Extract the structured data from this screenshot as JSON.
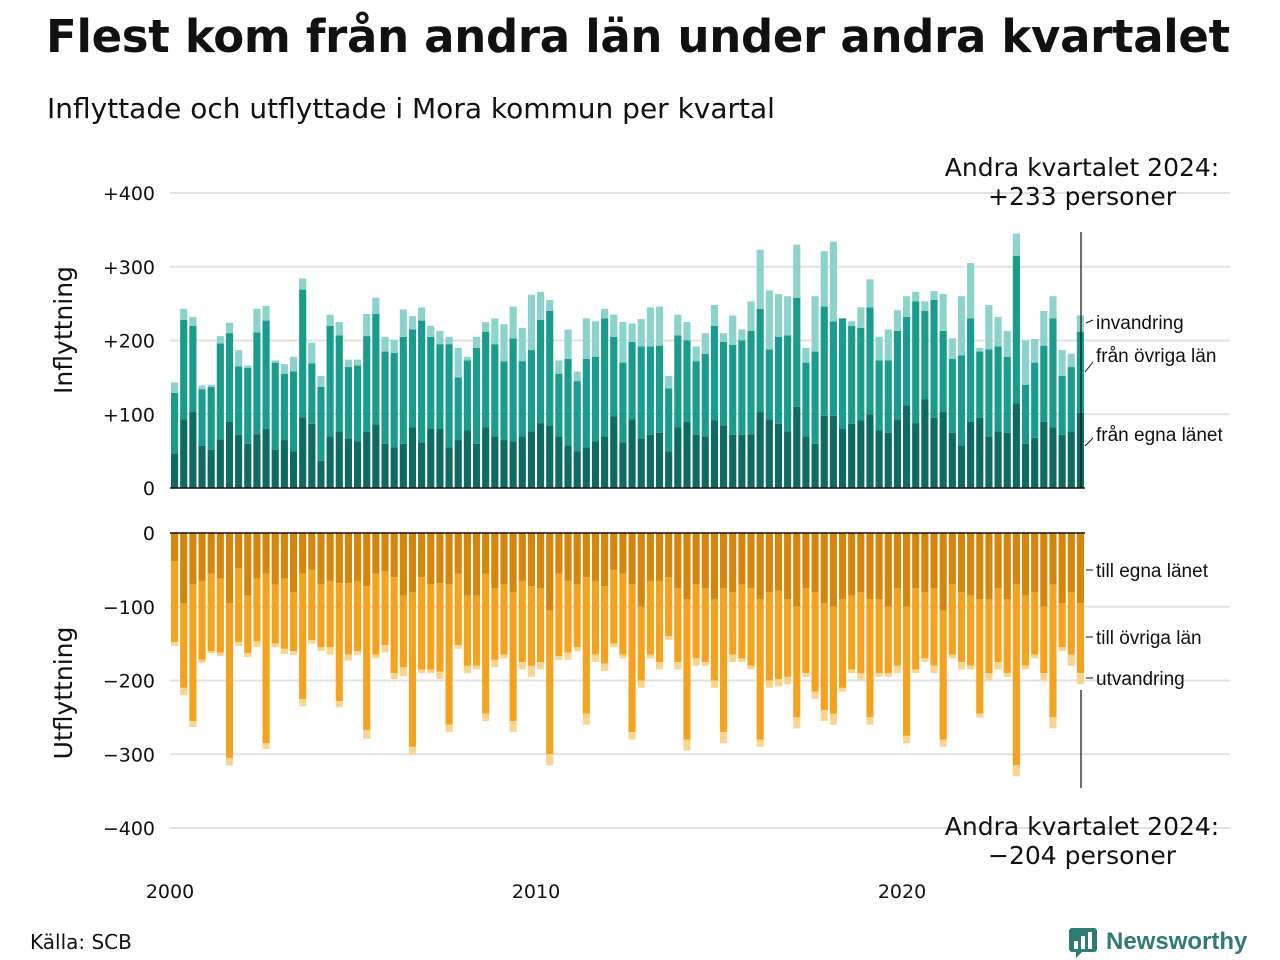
{
  "title": "Flest kom från andra län under andra kvartalet",
  "subtitle": "Inflyttade och utflyttade i Mora kommun per kvartal",
  "source": "Källa: SCB",
  "logo_text": "Newsworthy",
  "colors": {
    "in_own": "#0e6b60",
    "in_other": "#1a9c8c",
    "in_immigration": "#8bd3cb",
    "out_own": "#d4860d",
    "out_other": "#f5a21f",
    "out_emigration": "#fbd48f",
    "grid": "#e2e2e2",
    "axis": "#111111",
    "logo": "#2e7d74"
  },
  "chart_data": [
    {
      "type": "bar",
      "stacked": true,
      "ylabel": "Inflyttning",
      "ylim": [
        0,
        400
      ],
      "yticks": [
        0,
        100,
        200,
        300,
        400
      ],
      "ytick_labels": [
        "0",
        "+100",
        "+200",
        "+300",
        "+400"
      ],
      "x_start": "2000 Q1",
      "x_end": "2024 Q2",
      "xticks": [
        "2000",
        "2010",
        "2020"
      ],
      "annotation": [
        "Andra kvartalet 2024:",
        "+233 personer"
      ],
      "series": [
        {
          "name": "från egna länet",
          "values": [
            47,
            93,
            103,
            57,
            52,
            66,
            90,
            72,
            60,
            73,
            80,
            52,
            65,
            50,
            96,
            87,
            37,
            70,
            77,
            67,
            63,
            76,
            86,
            60,
            55,
            60,
            82,
            62,
            80,
            80,
            55,
            65,
            78,
            60,
            82,
            70,
            65,
            63,
            70,
            77,
            88,
            85,
            70,
            58,
            50,
            55,
            63,
            70,
            97,
            62,
            93,
            67,
            72,
            75,
            50,
            82,
            90,
            72,
            70,
            92,
            85,
            72,
            72,
            73,
            103,
            93,
            87,
            77,
            110,
            70,
            60,
            98,
            98,
            80,
            87,
            92,
            100,
            78,
            75,
            93,
            112,
            88,
            120,
            95,
            103,
            75,
            58,
            90,
            95,
            70,
            77,
            75,
            115,
            60,
            68,
            90,
            82,
            72,
            77,
            102
          ]
        },
        {
          "name": "från övriga län",
          "values": [
            82,
            135,
            117,
            77,
            85,
            130,
            120,
            93,
            103,
            138,
            147,
            118,
            90,
            108,
            173,
            82,
            100,
            150,
            130,
            97,
            103,
            130,
            150,
            125,
            128,
            145,
            133,
            165,
            125,
            115,
            140,
            85,
            95,
            130,
            130,
            125,
            107,
            140,
            102,
            110,
            140,
            155,
            85,
            117,
            95,
            120,
            115,
            160,
            108,
            108,
            105,
            125,
            120,
            118,
            85,
            125,
            110,
            100,
            112,
            128,
            113,
            122,
            128,
            140,
            140,
            95,
            118,
            130,
            148,
            100,
            125,
            148,
            128,
            150,
            133,
            125,
            145,
            95,
            98,
            120,
            120,
            165,
            120,
            160,
            110,
            100,
            122,
            140,
            90,
            118,
            115,
            103,
            200,
            80,
            102,
            103,
            148,
            80,
            87,
            110
          ]
        },
        {
          "name": "invandring",
          "values": [
            14,
            15,
            12,
            5,
            3,
            10,
            14,
            22,
            3,
            32,
            20,
            3,
            13,
            20,
            15,
            28,
            15,
            15,
            18,
            10,
            8,
            30,
            22,
            20,
            18,
            37,
            18,
            18,
            15,
            18,
            10,
            40,
            5,
            15,
            13,
            35,
            50,
            43,
            45,
            75,
            38,
            15,
            18,
            40,
            13,
            55,
            48,
            13,
            30,
            55,
            25,
            37,
            53,
            53,
            17,
            28,
            25,
            20,
            28,
            28,
            12,
            40,
            15,
            40,
            80,
            80,
            58,
            53,
            72,
            20,
            75,
            75,
            108,
            0,
            6,
            28,
            38,
            32,
            42,
            28,
            28,
            13,
            13,
            12,
            50,
            28,
            80,
            75,
            5,
            60,
            40,
            35,
            30,
            60,
            32,
            47,
            30,
            35,
            18,
            22
          ]
        }
      ]
    },
    {
      "type": "bar",
      "stacked": true,
      "ylabel": "Utflyttning",
      "ylim": [
        -400,
        0
      ],
      "yticks": [
        0,
        -100,
        -200,
        -300,
        -400
      ],
      "ytick_labels": [
        "0",
        "−100",
        "−200",
        "−300",
        "−400"
      ],
      "x_start": "2000 Q1",
      "x_end": "2024 Q2",
      "xticks": [
        "2000",
        "2010",
        "2020"
      ],
      "annotation": [
        "Andra kvartalet 2024:",
        "−204 personer"
      ],
      "series": [
        {
          "name": "till egna länet",
          "values": [
            -38,
            -95,
            -70,
            -65,
            -55,
            -62,
            -95,
            -48,
            -85,
            -62,
            -55,
            -70,
            -62,
            -80,
            -55,
            -50,
            -70,
            -65,
            -68,
            -68,
            -65,
            -72,
            -55,
            -52,
            -60,
            -85,
            -80,
            -60,
            -70,
            -68,
            -70,
            -55,
            -85,
            -85,
            -55,
            -75,
            -70,
            -80,
            -65,
            -72,
            -75,
            -105,
            -55,
            -65,
            -70,
            -60,
            -65,
            -72,
            -50,
            -55,
            -70,
            -100,
            -65,
            -65,
            -60,
            -75,
            -90,
            -70,
            -75,
            -90,
            -75,
            -80,
            -70,
            -75,
            -90,
            -80,
            -78,
            -90,
            -100,
            -75,
            -80,
            -95,
            -100,
            -90,
            -85,
            -80,
            -90,
            -90,
            -100,
            -75,
            -100,
            -75,
            -80,
            -75,
            -105,
            -70,
            -80,
            -85,
            -90,
            -90,
            -75,
            -90,
            -70,
            -85,
            -80,
            -100,
            -70,
            -95,
            -80,
            -95
          ]
        },
        {
          "name": "till övriga län",
          "values": [
            -110,
            -115,
            -185,
            -107,
            -105,
            -100,
            -210,
            -100,
            -78,
            -85,
            -230,
            -80,
            -95,
            -80,
            -170,
            -95,
            -85,
            -90,
            -160,
            -97,
            -95,
            -195,
            -110,
            -100,
            -130,
            -97,
            -210,
            -125,
            -115,
            -120,
            -190,
            -97,
            -95,
            -95,
            -190,
            -97,
            -95,
            -175,
            -110,
            -108,
            -100,
            -195,
            -112,
            -97,
            -85,
            -185,
            -100,
            -105,
            -100,
            -110,
            -200,
            -100,
            -100,
            -110,
            -80,
            -100,
            -190,
            -100,
            -100,
            -110,
            -195,
            -85,
            -100,
            -105,
            -190,
            -120,
            -120,
            -105,
            -150,
            -115,
            -135,
            -145,
            -145,
            -120,
            -100,
            -110,
            -160,
            -100,
            -90,
            -105,
            -175,
            -110,
            -90,
            -105,
            -175,
            -95,
            -95,
            -95,
            -155,
            -100,
            -100,
            -100,
            -245,
            -95,
            -85,
            -90,
            -180,
            -60,
            -85,
            -95
          ]
        },
        {
          "name": "utvandring",
          "values": [
            -5,
            -10,
            -8,
            -4,
            -3,
            -5,
            -10,
            -5,
            -5,
            -8,
            -8,
            -5,
            -7,
            -5,
            -10,
            -5,
            -5,
            -10,
            -8,
            -8,
            -5,
            -12,
            -5,
            -10,
            -8,
            -12,
            -10,
            -5,
            -5,
            -10,
            -10,
            -5,
            -10,
            -5,
            -10,
            -10,
            -5,
            -15,
            -10,
            -15,
            -10,
            -15,
            -5,
            -10,
            -5,
            -15,
            -10,
            -10,
            -5,
            -5,
            -10,
            -10,
            -5,
            -10,
            -5,
            -10,
            -15,
            -10,
            -5,
            -10,
            -15,
            -10,
            -5,
            -5,
            -10,
            -10,
            -10,
            -10,
            -15,
            -5,
            -10,
            -15,
            -15,
            -5,
            -5,
            -10,
            -10,
            -5,
            -5,
            -10,
            -10,
            -5,
            -5,
            -10,
            -10,
            -5,
            -10,
            -5,
            -5,
            -10,
            -10,
            -5,
            -15,
            -5,
            -5,
            -10,
            -15,
            -5,
            -15,
            -15
          ]
        }
      ]
    }
  ]
}
